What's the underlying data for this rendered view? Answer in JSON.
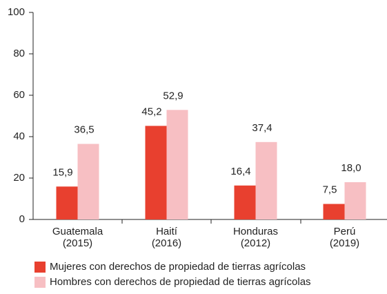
{
  "chart_data": {
    "type": "bar",
    "categories": [
      "Guatemala\n(2015)",
      "Haití\n(2016)",
      "Honduras\n(2012)",
      "Perú\n(2019)"
    ],
    "series": [
      {
        "name": "Mujeres con derechos de propiedad de tierras agrícolas",
        "color": "#e8402f",
        "values": [
          15.9,
          45.2,
          16.4,
          7.5
        ],
        "value_labels": [
          "15,9",
          "45,2",
          "16,4",
          "7,5"
        ]
      },
      {
        "name": "Hombres con derechos de propiedad de tierras agrícolas",
        "color": "#f7bfc3",
        "values": [
          36.5,
          52.9,
          37.4,
          18.0
        ],
        "value_labels": [
          "36,5",
          "52,9",
          "37,4",
          "18,0"
        ]
      }
    ],
    "ylim": [
      0,
      100
    ],
    "yticks": [
      0,
      20,
      40,
      60,
      80,
      100
    ],
    "grid": false,
    "legend": "bottom"
  }
}
